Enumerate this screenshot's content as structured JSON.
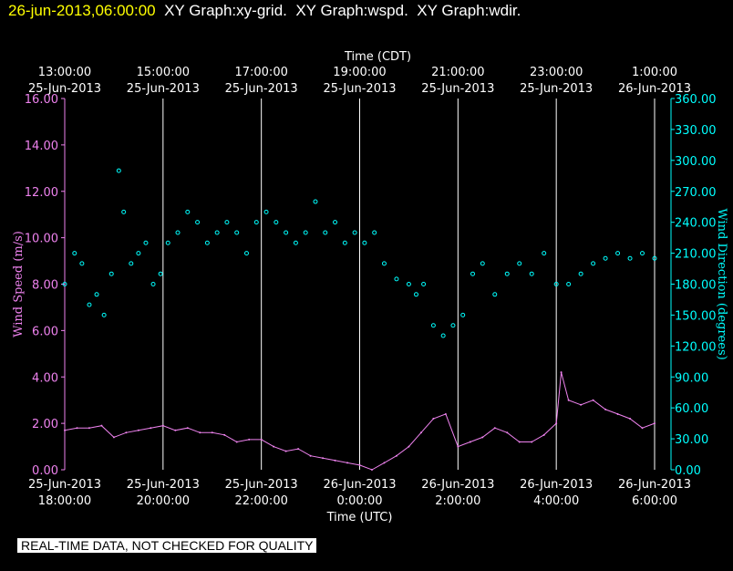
{
  "header": {
    "timestamp": "26-jun-2013,06:00:00",
    "titles": [
      "XY Graph:xy-grid.",
      "XY Graph:wspd.",
      "XY Graph:wdir."
    ]
  },
  "notice": "REAL-TIME DATA, NOT CHECKED FOR QUALITY",
  "colors": {
    "background": "#000000",
    "wspd": "#ee82ee",
    "wdir": "#00ffff",
    "grid": "#ffffff",
    "header_time": "#ffff00"
  },
  "chart_data": {
    "type": "scatter",
    "grid": true,
    "x_range_hours_utc": [
      18,
      30
    ],
    "top_axis": {
      "label": "Time (CDT)",
      "ticks": [
        {
          "time": "13:00:00",
          "date": "25-Jun-2013"
        },
        {
          "time": "15:00:00",
          "date": "25-Jun-2013"
        },
        {
          "time": "17:00:00",
          "date": "25-Jun-2013"
        },
        {
          "time": "19:00:00",
          "date": "25-Jun-2013"
        },
        {
          "time": "21:00:00",
          "date": "25-Jun-2013"
        },
        {
          "time": "23:00:00",
          "date": "25-Jun-2013"
        },
        {
          "time": "1:00:00",
          "date": "26-Jun-2013"
        }
      ]
    },
    "bottom_axis": {
      "label": "Time (UTC)",
      "ticks": [
        {
          "date": "25-Jun-2013",
          "time": "18:00:00"
        },
        {
          "date": "25-Jun-2013",
          "time": "20:00:00"
        },
        {
          "date": "25-Jun-2013",
          "time": "22:00:00"
        },
        {
          "date": "26-Jun-2013",
          "time": "0:00:00"
        },
        {
          "date": "26-Jun-2013",
          "time": "2:00:00"
        },
        {
          "date": "26-Jun-2013",
          "time": "4:00:00"
        },
        {
          "date": "26-Jun-2013",
          "time": "6:00:00"
        }
      ]
    },
    "left_axis": {
      "label": "Wind Speed (m/s)",
      "ylim": [
        0,
        16
      ],
      "ticks": [
        "0.00",
        "2.00",
        "4.00",
        "6.00",
        "8.00",
        "10.00",
        "12.00",
        "14.00",
        "16.00"
      ]
    },
    "right_axis": {
      "label": "Wind Direction (degrees)",
      "ylim": [
        0,
        360
      ],
      "ticks": [
        "0.00",
        "30.00",
        "60.00",
        "90.00",
        "120.00",
        "150.00",
        "180.00",
        "210.00",
        "240.00",
        "270.00",
        "300.00",
        "330.00",
        "360.00"
      ]
    },
    "series": [
      {
        "key": "wspd",
        "style": "line",
        "axis": "left",
        "x_hours_utc": [
          18.0,
          18.25,
          18.5,
          18.75,
          19.0,
          19.25,
          19.5,
          19.75,
          20.0,
          20.25,
          20.5,
          20.75,
          21.0,
          21.25,
          21.5,
          21.75,
          22.0,
          22.25,
          22.5,
          22.75,
          23.0,
          23.25,
          23.5,
          23.75,
          24.0,
          24.25,
          24.5,
          24.75,
          25.0,
          25.25,
          25.5,
          25.75,
          26.0,
          26.25,
          26.5,
          26.75,
          27.0,
          27.25,
          27.5,
          27.75,
          28.0,
          28.1,
          28.25,
          28.5,
          28.75,
          29.0,
          29.25,
          29.5,
          29.75,
          30.0
        ],
        "y": [
          1.7,
          1.8,
          1.8,
          1.9,
          1.4,
          1.6,
          1.7,
          1.8,
          1.9,
          1.7,
          1.8,
          1.6,
          1.6,
          1.5,
          1.2,
          1.3,
          1.3,
          1.0,
          0.8,
          0.9,
          0.6,
          0.5,
          0.4,
          0.3,
          0.2,
          0.0,
          0.3,
          0.6,
          1.0,
          1.6,
          2.2,
          2.4,
          1.0,
          1.2,
          1.4,
          1.8,
          1.6,
          1.2,
          1.2,
          1.5,
          2.0,
          4.2,
          3.0,
          2.8,
          3.0,
          2.6,
          2.4,
          2.2,
          1.8,
          2.0
        ]
      },
      {
        "key": "wdir",
        "style": "scatter",
        "axis": "right",
        "x_hours_utc": [
          18.0,
          18.2,
          18.35,
          18.5,
          18.65,
          18.8,
          18.95,
          19.1,
          19.2,
          19.35,
          19.5,
          19.65,
          19.8,
          19.95,
          20.1,
          20.3,
          20.5,
          20.7,
          20.9,
          21.1,
          21.3,
          21.5,
          21.7,
          21.9,
          22.1,
          22.3,
          22.5,
          22.7,
          22.9,
          23.1,
          23.3,
          23.5,
          23.7,
          23.9,
          24.1,
          24.3,
          24.5,
          24.75,
          25.0,
          25.15,
          25.3,
          25.5,
          25.7,
          25.9,
          26.1,
          26.3,
          26.5,
          26.75,
          27.0,
          27.25,
          27.5,
          27.75,
          28.0,
          28.25,
          28.5,
          28.75,
          29.0,
          29.25,
          29.5,
          29.75,
          30.0
        ],
        "y": [
          180,
          210,
          200,
          160,
          170,
          150,
          190,
          290,
          250,
          200,
          210,
          220,
          180,
          190,
          220,
          230,
          250,
          240,
          220,
          230,
          240,
          230,
          210,
          240,
          250,
          240,
          230,
          220,
          230,
          260,
          230,
          240,
          220,
          230,
          220,
          230,
          200,
          185,
          180,
          170,
          180,
          140,
          130,
          140,
          150,
          190,
          200,
          170,
          190,
          200,
          190,
          210,
          180,
          180,
          190,
          200,
          205,
          210,
          205,
          210,
          205
        ]
      }
    ]
  }
}
